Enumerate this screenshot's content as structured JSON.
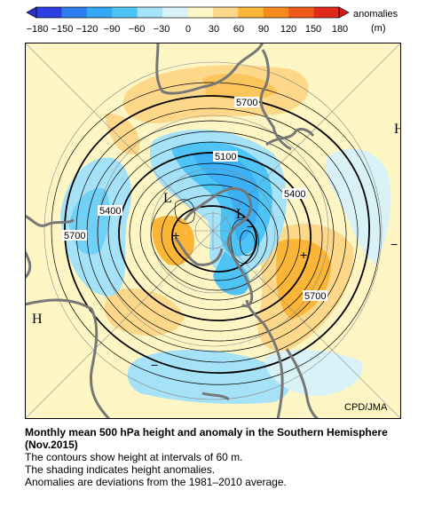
{
  "colorbar": {
    "title": "anomalies",
    "unit": "(m)",
    "ticks": [
      "−180",
      "−150",
      "−120",
      "−90",
      "−60",
      "−30",
      "0",
      "30",
      "60",
      "90",
      "120",
      "150",
      "180"
    ],
    "colors": [
      "#2b3fe0",
      "#2f7ef0",
      "#33a8f5",
      "#4dc4f5",
      "#a6e2f7",
      "#d8f2f8",
      "#fdf6c4",
      "#fdd88a",
      "#fbb637",
      "#f68a1e",
      "#ef5a1a",
      "#e02a1a"
    ]
  },
  "map": {
    "labels": {
      "low1": "L",
      "low2": "L",
      "high1": "H",
      "high2": "H",
      "plus1": "+",
      "plus2": "+",
      "minus1": "−",
      "minus2": "−",
      "minus3": "−"
    },
    "contour_labels": {
      "c5700a": "5700",
      "c5700b": "5700",
      "c5700c": "5700",
      "c5400a": "5400",
      "c5400b": "5400",
      "c5100": "5100"
    },
    "credit": "CPD/JMA"
  },
  "caption": {
    "title": "Monthly mean 500 hPa height and anomaly in the Southern Hemisphere (Nov.2015)",
    "line1": "The contours show height at intervals of 60 m.",
    "line2": "The shading indicates height anomalies.",
    "line3": "Anomalies are deviations from the 1981–2010 average."
  }
}
